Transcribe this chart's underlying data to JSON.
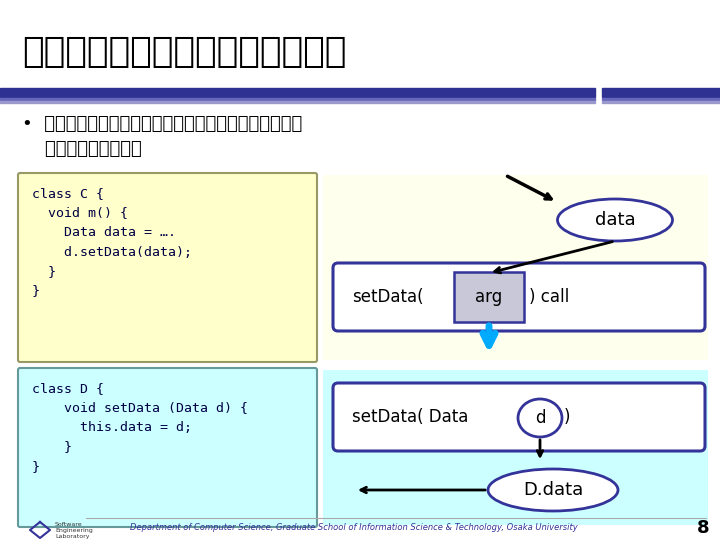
{
  "title": "グラフを使ったデータフロー調査",
  "bullet1": "•  グラフ上で複数のコード片を横断してデータフローを",
  "bullet2": "    調査することが可能",
  "code_c_lines": [
    "class C {",
    "  void m() {",
    "    Data data = ….",
    "    d.setData(data);",
    "  }",
    "}"
  ],
  "code_d_lines": [
    "class D {",
    "    void setData (Data d) {",
    "      this.data = d;",
    "    }",
    "}"
  ],
  "bg_color": "#ffffff",
  "title_color": "#000000",
  "bar_color": "#2e3192",
  "code_c_bg": "#ffffcc",
  "code_d_bg": "#ccffff",
  "diagram_top_bg": "#ffffee",
  "diagram_bot_bg": "#ccffff",
  "node_edge_color": "#333399",
  "footer_text": "Department of Computer Science, Graduate School of Information Science & Technology, Osaka University",
  "page_num": "8"
}
